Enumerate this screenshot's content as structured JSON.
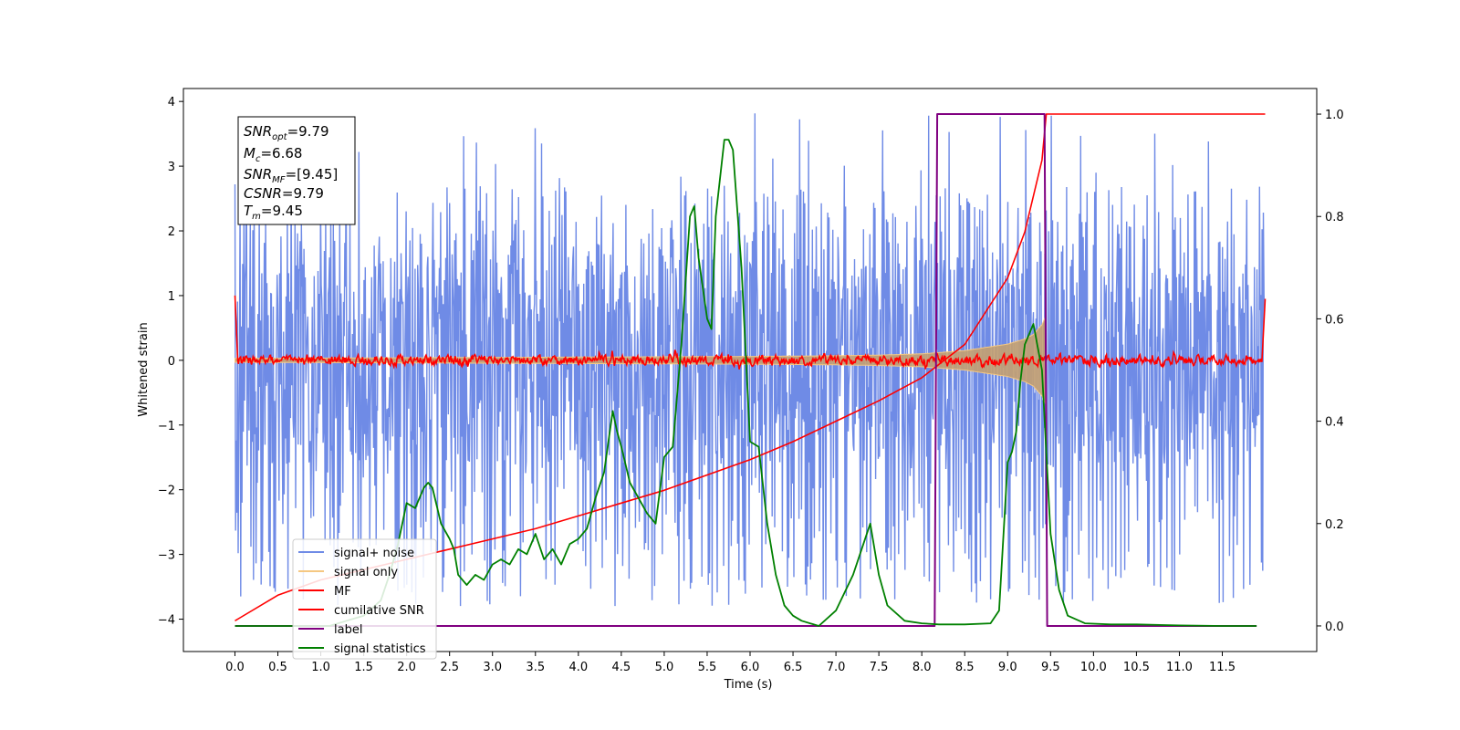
{
  "chart_data": {
    "type": "line",
    "xlabel": "Time (s)",
    "ylabel": "Whitened strain",
    "xlim": [
      -0.6,
      12.6
    ],
    "ylim_left": [
      -4.5,
      4.2
    ],
    "ylim_right": [
      -0.05,
      1.05
    ],
    "x_ticks": [
      "0.0",
      "0.5",
      "1.0",
      "1.5",
      "2.0",
      "2.5",
      "3.0",
      "3.5",
      "4.0",
      "4.5",
      "5.0",
      "5.5",
      "6.0",
      "6.5",
      "7.0",
      "7.5",
      "8.0",
      "8.5",
      "9.0",
      "9.5",
      "10.0",
      "10.5",
      "11.0",
      "11.5"
    ],
    "y_ticks_left": [
      "−4",
      "−3",
      "−2",
      "−1",
      "0",
      "1",
      "2",
      "3",
      "4"
    ],
    "y_ticks_right": [
      "0.0",
      "0.2",
      "0.4",
      "0.6",
      "0.8",
      "1.0"
    ],
    "colors": {
      "signal_noise": "#6f8be6",
      "signal_only": "#f5c882",
      "signal_fill": "#c4a070",
      "mf": "#ff0000",
      "cumulative": "#ff0000",
      "label": "#800080",
      "statistics": "#008000"
    },
    "annotation": {
      "snr_opt": "9.79",
      "mc": "6.68",
      "snr_mf": "[9.45]",
      "csnr": "9.79",
      "tm": "9.45"
    },
    "legend": {
      "placement": "lower-left",
      "entries": [
        "signal+ noise",
        "signal only",
        "MF",
        "cumilative SNR",
        "label",
        "signal statistics"
      ]
    },
    "series": [
      {
        "name": "signal+ noise",
        "axis": "left",
        "x_range": [
          0.0,
          12.0
        ],
        "envelope_upper": 2.7,
        "envelope_lower": -2.6,
        "peak_max": 3.85,
        "peak_min": -4.05
      },
      {
        "name": "signal only",
        "axis": "left",
        "x": [
          0.0,
          1.0,
          2.0,
          3.0,
          4.0,
          5.0,
          6.0,
          7.0,
          7.5,
          8.0,
          8.5,
          9.0,
          9.2,
          9.3,
          9.4,
          9.45
        ],
        "amplitude": [
          0.03,
          0.035,
          0.04,
          0.045,
          0.05,
          0.055,
          0.06,
          0.07,
          0.08,
          0.1,
          0.15,
          0.25,
          0.33,
          0.4,
          0.55,
          0.7
        ]
      },
      {
        "name": "MF",
        "axis": "left",
        "x_range": [
          0.0,
          12.0
        ],
        "mean": 0.0,
        "band": 0.12,
        "start_value": 1.0,
        "end_value": 0.95
      },
      {
        "name": "cumilative SNR",
        "axis": "right",
        "x": [
          0.0,
          0.05,
          0.5,
          1.0,
          1.5,
          2.0,
          2.5,
          3.0,
          3.5,
          4.0,
          4.5,
          5.0,
          5.5,
          6.0,
          6.5,
          7.0,
          7.5,
          8.0,
          8.5,
          9.0,
          9.2,
          9.4,
          9.45,
          12.0
        ],
        "y": [
          0.01,
          0.015,
          0.06,
          0.09,
          0.11,
          0.13,
          0.15,
          0.17,
          0.19,
          0.215,
          0.24,
          0.265,
          0.295,
          0.325,
          0.36,
          0.4,
          0.44,
          0.485,
          0.55,
          0.68,
          0.77,
          0.91,
          1.0,
          1.0
        ]
      },
      {
        "name": "label",
        "axis": "right",
        "x": [
          0.0,
          8.15,
          8.18,
          9.43,
          9.46,
          11.9
        ],
        "y": [
          0.0,
          0.0,
          1.0,
          1.0,
          0.0,
          0.0
        ]
      },
      {
        "name": "signal statistics",
        "axis": "right",
        "x": [
          0.0,
          0.3,
          0.5,
          0.8,
          1.1,
          1.3,
          1.5,
          1.7,
          1.8,
          1.9,
          2.0,
          2.1,
          2.2,
          2.25,
          2.3,
          2.4,
          2.5,
          2.55,
          2.6,
          2.7,
          2.8,
          2.9,
          3.0,
          3.1,
          3.2,
          3.3,
          3.4,
          3.5,
          3.6,
          3.7,
          3.8,
          3.9,
          4.0,
          4.1,
          4.2,
          4.3,
          4.4,
          4.45,
          4.5,
          4.6,
          4.7,
          4.8,
          4.9,
          5.0,
          5.1,
          5.2,
          5.3,
          5.35,
          5.4,
          5.5,
          5.55,
          5.6,
          5.7,
          5.75,
          5.8,
          5.9,
          6.0,
          6.1,
          6.2,
          6.3,
          6.4,
          6.5,
          6.6,
          6.8,
          7.0,
          7.2,
          7.3,
          7.4,
          7.5,
          7.6,
          7.8,
          8.0,
          8.2,
          8.5,
          8.8,
          8.9,
          9.0,
          9.05,
          9.1,
          9.15,
          9.2,
          9.3,
          9.4,
          9.5,
          9.6,
          9.7,
          9.9,
          10.2,
          10.5,
          11.0,
          11.5,
          11.9
        ],
        "y": [
          0.0,
          0.0,
          0.0,
          0.0,
          0.0,
          0.01,
          0.02,
          0.05,
          0.1,
          0.16,
          0.24,
          0.23,
          0.27,
          0.28,
          0.27,
          0.2,
          0.17,
          0.15,
          0.1,
          0.08,
          0.1,
          0.09,
          0.12,
          0.13,
          0.12,
          0.15,
          0.14,
          0.18,
          0.13,
          0.15,
          0.12,
          0.16,
          0.17,
          0.19,
          0.25,
          0.3,
          0.42,
          0.38,
          0.35,
          0.28,
          0.25,
          0.22,
          0.2,
          0.33,
          0.35,
          0.55,
          0.8,
          0.82,
          0.72,
          0.6,
          0.58,
          0.8,
          0.95,
          0.95,
          0.93,
          0.7,
          0.36,
          0.35,
          0.2,
          0.1,
          0.04,
          0.02,
          0.01,
          0.0,
          0.03,
          0.1,
          0.15,
          0.2,
          0.1,
          0.04,
          0.01,
          0.005,
          0.003,
          0.003,
          0.005,
          0.03,
          0.32,
          0.34,
          0.38,
          0.48,
          0.55,
          0.59,
          0.5,
          0.18,
          0.07,
          0.02,
          0.005,
          0.003,
          0.003,
          0.001,
          0.0,
          0.0
        ]
      }
    ]
  }
}
